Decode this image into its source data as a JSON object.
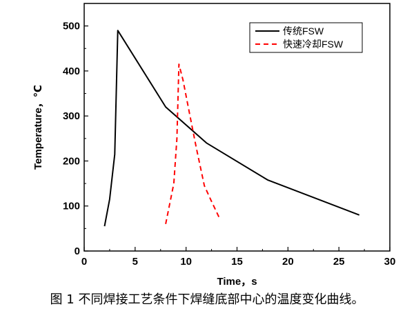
{
  "caption": "图 1  不同焊接工艺条件下焊缝底部中心的温度变化曲线。",
  "chart_data": {
    "type": "line",
    "title": "",
    "xlabel": "Time，s",
    "ylabel": "Temperature，℃",
    "xlim": [
      0,
      30
    ],
    "ylim": [
      0,
      550
    ],
    "xticks": [
      0,
      5,
      10,
      15,
      20,
      25,
      30
    ],
    "yticks": [
      0,
      100,
      200,
      300,
      400,
      500
    ],
    "grid": false,
    "legend_position": "top-right",
    "series": [
      {
        "name": "传统FSW",
        "color": "#000000",
        "style": "solid",
        "points": [
          [
            2.0,
            55
          ],
          [
            2.5,
            115
          ],
          [
            3.0,
            215
          ],
          [
            3.3,
            490
          ],
          [
            8.0,
            320
          ],
          [
            12.0,
            240
          ],
          [
            18.0,
            158
          ],
          [
            27.0,
            80
          ]
        ]
      },
      {
        "name": "快速冷却FSW",
        "color": "#ff0000",
        "style": "dashed",
        "points": [
          [
            8.0,
            60
          ],
          [
            8.8,
            150
          ],
          [
            9.1,
            250
          ],
          [
            9.3,
            415
          ],
          [
            9.7,
            380
          ],
          [
            10.3,
            310
          ],
          [
            11.0,
            230
          ],
          [
            11.8,
            145
          ],
          [
            12.5,
            110
          ],
          [
            13.3,
            72
          ]
        ]
      }
    ]
  }
}
